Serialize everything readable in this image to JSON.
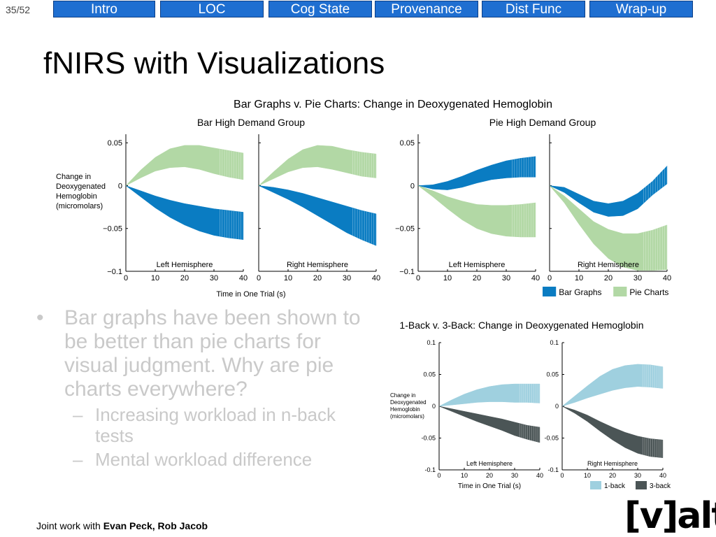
{
  "slide_number": "35/52",
  "nav": {
    "tabs": [
      {
        "label": "Intro"
      },
      {
        "label": "LOC"
      },
      {
        "label": "Cog State"
      },
      {
        "label": "Provenance"
      },
      {
        "label": "Dist Func"
      },
      {
        "label": "Wrap-up"
      }
    ]
  },
  "title": "fNIRS with Visualizations",
  "bullets": {
    "main": "Bar graphs have been shown to be better than pie charts for visual judgment.  Why are pie charts everywhere?",
    "sub": [
      "Increasing workload in n-back tests",
      "Mental workload  difference"
    ]
  },
  "footer": {
    "prefix": "Joint work with ",
    "names": "Evan Peck, Rob Jacob"
  },
  "logo": {
    "text": "[v]alt"
  },
  "colors": {
    "accent": "#1f6fd1",
    "bar": "#0a7cc2",
    "pie": "#b2d8a5",
    "one_back": "#9fd0df",
    "three_back": "#4b5556"
  },
  "chart_data": [
    {
      "type": "area",
      "title": "Bar Graphs v. Pie Charts: Change in Deoxygenated Hemoglobin",
      "xlabel": "Time in One Trial (s)",
      "ylabel": [
        "Change in",
        "Deoxygenated",
        "Hemoglobin",
        "(micromolars)"
      ],
      "legend": [
        "Bar Graphs",
        "Pie Charts"
      ],
      "legend_position": "bottom-right",
      "xlim": [
        0,
        40
      ],
      "ylim": [
        -0.1,
        0.06
      ],
      "x_ticks": [
        0,
        10,
        20,
        30,
        40
      ],
      "y_ticks": [
        {
          "value": 0.05,
          "label": "0.05"
        },
        {
          "value": 0,
          "label": "0"
        },
        {
          "value": -0.05,
          "label": "−0.05"
        },
        {
          "value": -0.1,
          "label": "−0.1"
        }
      ],
      "groups": [
        {
          "title": "Bar High Demand Group",
          "panels": [
            {
              "label": "Left Hemisphere",
              "series": [
                {
                  "name": "Bar Graphs",
                  "x": [
                    0,
                    5,
                    10,
                    15,
                    20,
                    25,
                    30,
                    35,
                    40
                  ],
                  "upper": [
                    0,
                    -0.006,
                    -0.012,
                    -0.017,
                    -0.021,
                    -0.024,
                    -0.027,
                    -0.029,
                    -0.031
                  ],
                  "lower": [
                    0,
                    -0.013,
                    -0.026,
                    -0.037,
                    -0.046,
                    -0.053,
                    -0.058,
                    -0.061,
                    -0.063
                  ]
                },
                {
                  "name": "Pie Charts",
                  "x": [
                    0,
                    5,
                    10,
                    15,
                    20,
                    25,
                    30,
                    35,
                    40
                  ],
                  "upper": [
                    0,
                    0.018,
                    0.033,
                    0.043,
                    0.047,
                    0.047,
                    0.044,
                    0.041,
                    0.038
                  ],
                  "lower": [
                    0,
                    0.009,
                    0.017,
                    0.021,
                    0.022,
                    0.019,
                    0.014,
                    0.01,
                    0.007
                  ]
                }
              ]
            },
            {
              "label": "Right Hemisphere",
              "series": [
                {
                  "name": "Bar Graphs",
                  "x": [
                    0,
                    5,
                    10,
                    15,
                    20,
                    25,
                    30,
                    35,
                    40
                  ],
                  "upper": [
                    0,
                    -0.002,
                    -0.005,
                    -0.009,
                    -0.014,
                    -0.019,
                    -0.024,
                    -0.029,
                    -0.033
                  ],
                  "lower": [
                    0,
                    -0.008,
                    -0.016,
                    -0.025,
                    -0.035,
                    -0.045,
                    -0.055,
                    -0.063,
                    -0.07
                  ]
                },
                {
                  "name": "Pie Charts",
                  "x": [
                    0,
                    5,
                    10,
                    15,
                    20,
                    25,
                    30,
                    35,
                    40
                  ],
                  "upper": [
                    0,
                    0.016,
                    0.031,
                    0.042,
                    0.047,
                    0.046,
                    0.042,
                    0.039,
                    0.037
                  ],
                  "lower": [
                    0,
                    0.008,
                    0.016,
                    0.021,
                    0.022,
                    0.019,
                    0.015,
                    0.011,
                    0.009
                  ]
                }
              ]
            }
          ]
        },
        {
          "title": "Pie High Demand Group",
          "panels": [
            {
              "label": "Left Hemisphere",
              "series": [
                {
                  "name": "Bar Graphs",
                  "x": [
                    0,
                    5,
                    10,
                    15,
                    20,
                    25,
                    30,
                    35,
                    40
                  ],
                  "upper": [
                    0,
                    0.001,
                    0.005,
                    0.011,
                    0.018,
                    0.024,
                    0.029,
                    0.032,
                    0.034
                  ],
                  "lower": [
                    0,
                    -0.004,
                    -0.005,
                    -0.002,
                    0.003,
                    0.007,
                    0.009,
                    0.01,
                    0.01
                  ]
                },
                {
                  "name": "Pie Charts",
                  "x": [
                    0,
                    5,
                    10,
                    15,
                    20,
                    25,
                    30,
                    35,
                    40
                  ],
                  "upper": [
                    0,
                    -0.006,
                    -0.013,
                    -0.018,
                    -0.022,
                    -0.023,
                    -0.023,
                    -0.022,
                    -0.02
                  ],
                  "lower": [
                    0,
                    -0.013,
                    -0.027,
                    -0.04,
                    -0.05,
                    -0.056,
                    -0.059,
                    -0.06,
                    -0.06
                  ]
                }
              ]
            },
            {
              "label": "Right Hemisphere",
              "series": [
                {
                  "name": "Bar Graphs",
                  "x": [
                    0,
                    5,
                    10,
                    15,
                    20,
                    25,
                    30,
                    35,
                    40
                  ],
                  "upper": [
                    0,
                    -0.002,
                    -0.01,
                    -0.018,
                    -0.021,
                    -0.018,
                    -0.009,
                    0.005,
                    0.023
                  ],
                  "lower": [
                    0,
                    -0.008,
                    -0.02,
                    -0.031,
                    -0.036,
                    -0.035,
                    -0.027,
                    -0.011,
                    0.002
                  ]
                },
                {
                  "name": "Pie Charts",
                  "x": [
                    0,
                    5,
                    10,
                    15,
                    20,
                    25,
                    30,
                    35,
                    40
                  ],
                  "upper": [
                    0,
                    -0.012,
                    -0.027,
                    -0.042,
                    -0.051,
                    -0.056,
                    -0.056,
                    -0.052,
                    -0.046
                  ],
                  "lower": [
                    0,
                    -0.02,
                    -0.045,
                    -0.068,
                    -0.085,
                    -0.095,
                    -0.099,
                    -0.099,
                    -0.098
                  ]
                }
              ]
            }
          ]
        }
      ]
    },
    {
      "type": "area",
      "title": "1-Back v. 3-Back: Change in Deoxygenated Hemoglobin",
      "xlabel": "Time in One Trial (s)",
      "ylabel": [
        "Change in",
        "Deoxygenated",
        "Hemoglobin",
        "(micromolars)"
      ],
      "legend": [
        "1-back",
        "3-back"
      ],
      "legend_position": "bottom-right",
      "xlim": [
        0,
        40
      ],
      "ylim": [
        -0.1,
        0.1
      ],
      "x_ticks": [
        0,
        10,
        20,
        30,
        40
      ],
      "y_ticks": [
        {
          "value": 0.1,
          "label": "0.1"
        },
        {
          "value": 0.05,
          "label": "0.05"
        },
        {
          "value": 0,
          "label": "0"
        },
        {
          "value": -0.05,
          "label": "-0.05"
        },
        {
          "value": -0.1,
          "label": "-0.1"
        }
      ],
      "panels": [
        {
          "label": "Left Hemisphere",
          "series": [
            {
              "name": "1-back",
              "x": [
                0,
                5,
                10,
                15,
                20,
                25,
                30,
                35,
                40
              ],
              "upper": [
                0,
                0.01,
                0.019,
                0.026,
                0.031,
                0.034,
                0.035,
                0.035,
                0.035
              ],
              "lower": [
                0,
                0.002,
                0.004,
                0.006,
                0.007,
                0.007,
                0.006,
                0.006,
                0.005
              ]
            },
            {
              "name": "3-back",
              "x": [
                0,
                5,
                10,
                15,
                20,
                25,
                30,
                35,
                40
              ],
              "upper": [
                0,
                -0.004,
                -0.008,
                -0.012,
                -0.016,
                -0.02,
                -0.025,
                -0.03,
                -0.033
              ],
              "lower": [
                0,
                -0.008,
                -0.016,
                -0.024,
                -0.031,
                -0.038,
                -0.046,
                -0.052,
                -0.057
              ]
            }
          ]
        },
        {
          "label": "Right Hemisphere",
          "series": [
            {
              "name": "1-back",
              "x": [
                0,
                5,
                10,
                15,
                20,
                25,
                30,
                35,
                40
              ],
              "upper": [
                0,
                0.016,
                0.032,
                0.047,
                0.058,
                0.064,
                0.066,
                0.065,
                0.062
              ],
              "lower": [
                0,
                0.006,
                0.013,
                0.019,
                0.025,
                0.029,
                0.031,
                0.03,
                0.028
              ]
            },
            {
              "name": "3-back",
              "x": [
                0,
                5,
                10,
                15,
                20,
                25,
                30,
                35,
                40
              ],
              "upper": [
                0,
                -0.006,
                -0.014,
                -0.024,
                -0.033,
                -0.041,
                -0.047,
                -0.051,
                -0.053
              ],
              "lower": [
                0,
                -0.011,
                -0.024,
                -0.039,
                -0.053,
                -0.065,
                -0.074,
                -0.079,
                -0.081
              ]
            }
          ]
        }
      ]
    }
  ]
}
